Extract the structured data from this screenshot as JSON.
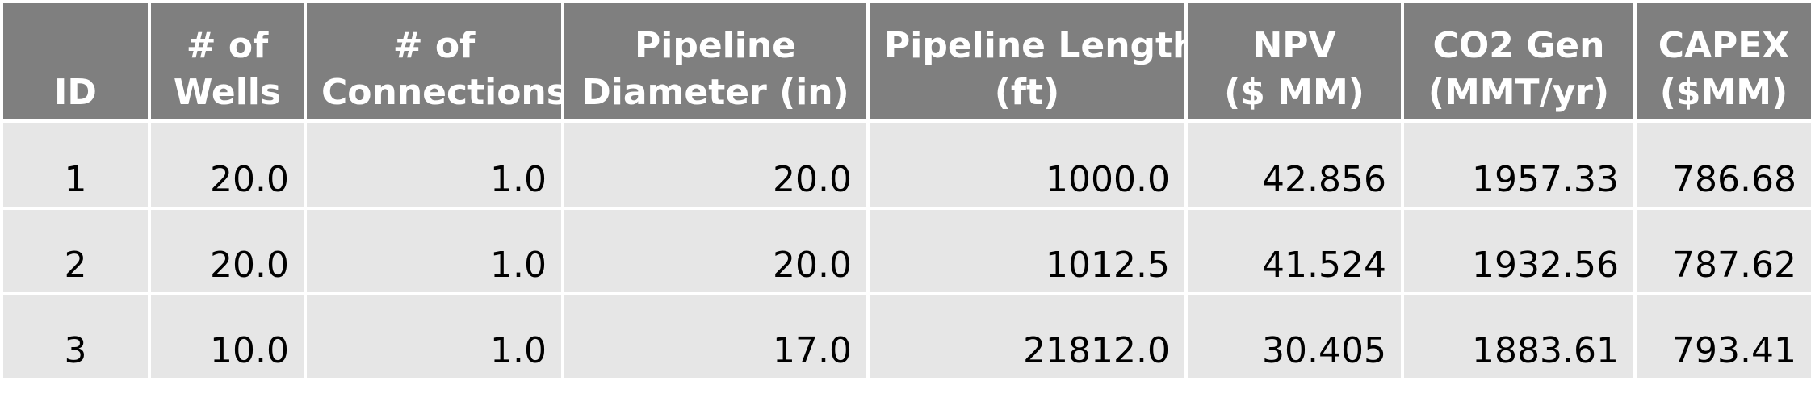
{
  "table": {
    "headers": [
      [
        "ID"
      ],
      [
        "# of",
        "Wells"
      ],
      [
        "# of",
        "Connections"
      ],
      [
        "Pipeline",
        "Diameter (in)"
      ],
      [
        "Pipeline Length",
        "(ft)"
      ],
      [
        "NPV",
        "($ MM)"
      ],
      [
        "CO2 Gen",
        "(MMT/yr)"
      ],
      [
        "CAPEX",
        "($MM)"
      ]
    ],
    "rows": [
      [
        "1",
        "20.0",
        "1.0",
        "20.0",
        "1000.0",
        "42.856",
        "1957.33",
        "786.68"
      ],
      [
        "2",
        "20.0",
        "1.0",
        "20.0",
        "1012.5",
        "41.524",
        "1932.56",
        "787.62"
      ],
      [
        "3",
        "10.0",
        "1.0",
        "17.0",
        "21812.0",
        "30.405",
        "1883.61",
        "793.41"
      ]
    ]
  },
  "colors": {
    "header_bg": "#7f7f7f",
    "header_text": "#ffffff",
    "row_bg": "#e6e6e6",
    "row_text": "#000000"
  }
}
